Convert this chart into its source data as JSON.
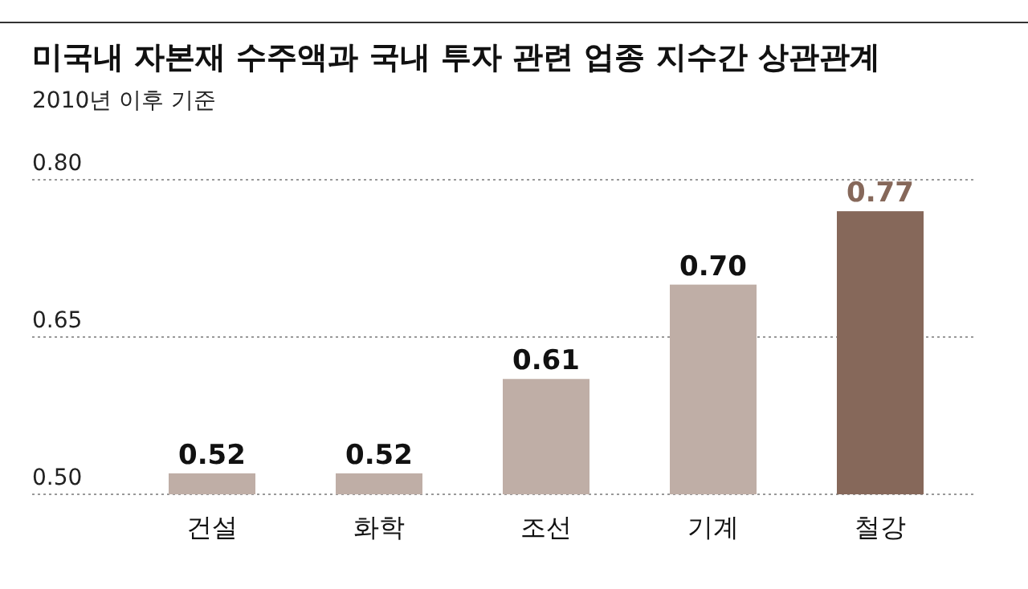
{
  "chart_data": {
    "type": "bar",
    "title": "미국내 자본재 수주액과 국내 투자 관련 업종 지수간 상관관계",
    "subtitle": "2010년 이후 기준",
    "categories": [
      "건설",
      "화학",
      "조선",
      "기계",
      "철강"
    ],
    "values": [
      0.52,
      0.52,
      0.61,
      0.7,
      0.77
    ],
    "colors": [
      "#bfaea6",
      "#bfaea6",
      "#bfaea6",
      "#bfaea6",
      "#86685a"
    ],
    "ylim": [
      0.5,
      0.8
    ],
    "yticks": [
      {
        "value": 0.5,
        "label": "0.50"
      },
      {
        "value": 0.65,
        "label": "0.65"
      },
      {
        "value": 0.8,
        "label": "0.80"
      }
    ],
    "value_labels": [
      "0.52",
      "0.52",
      "0.61",
      "0.70",
      "0.77"
    ],
    "grid": "y"
  }
}
